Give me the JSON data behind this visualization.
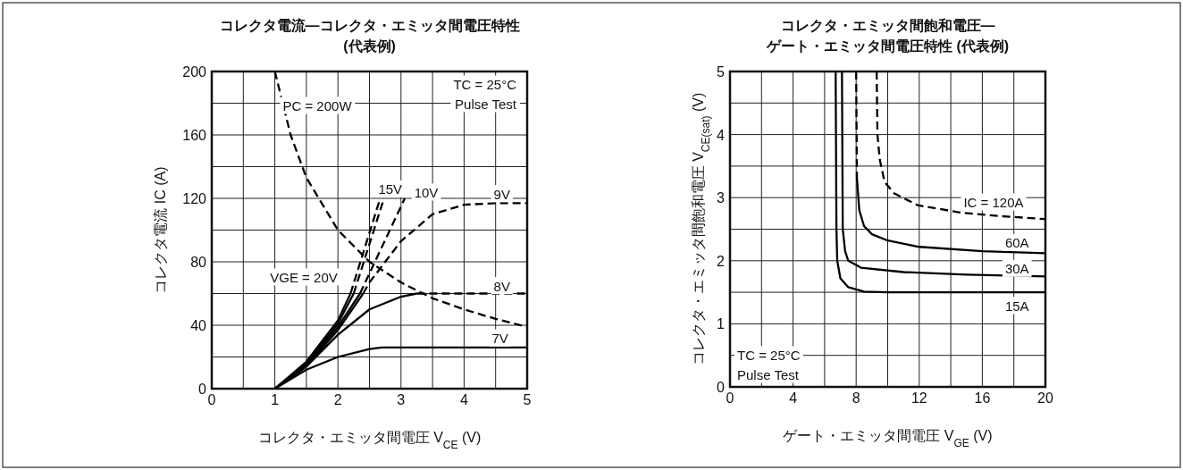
{
  "chart_data": [
    {
      "type": "line",
      "title": "コレクタ電流—コレクタ・エミッタ間電圧特性",
      "subtitle": "(代表例)",
      "xlabel": "コレクタ・エミッタ間電圧 V$_{CE}$ (V)",
      "ylabel": "コレクタ電流 IC (A)",
      "xlim": [
        0,
        5
      ],
      "ylim": [
        0,
        200
      ],
      "grid": true,
      "xticks": [
        0,
        {
          "value": 0.5,
          "label": null
        },
        1,
        {
          "value": 1.5,
          "label": null
        },
        2,
        {
          "value": 2.5,
          "label": null
        },
        3,
        {
          "value": 3.5,
          "label": null
        },
        4,
        {
          "value": 4.5,
          "label": null
        },
        5
      ],
      "yticks": [
        0,
        {
          "value": 20,
          "label": null
        },
        40,
        {
          "value": 60,
          "label": null
        },
        80,
        {
          "value": 100,
          "label": null
        },
        120,
        {
          "value": 140,
          "label": null
        },
        160,
        {
          "value": 180,
          "label": null
        },
        200
      ],
      "series": [
        {
          "color": "#000000",
          "line_style": "dashed",
          "x": [
            1,
            1.25,
            1.5,
            2,
            2.5,
            3,
            3.5,
            4,
            4.5,
            5
          ],
          "values": [
            200,
            160,
            133,
            100,
            80,
            67,
            57,
            50,
            44,
            39
          ]
        },
        {
          "color": "#000000",
          "line_style": "solid",
          "x": [
            1,
            1.5,
            2,
            2.5,
            2.7,
            3,
            4,
            5
          ],
          "values": [
            0,
            12,
            20,
            25,
            26,
            26,
            26,
            26
          ]
        },
        {
          "color": "#000000",
          "line_style": "solid",
          "x": [
            1,
            1.5,
            2,
            2.5,
            3,
            3.25
          ],
          "values": [
            0,
            14,
            34,
            50,
            58,
            60
          ]
        },
        {
          "color": "#000000",
          "line_style": "dashed",
          "x": [
            3.25,
            4,
            5
          ],
          "values": [
            60,
            60,
            60
          ]
        },
        {
          "color": "#000000",
          "line_style": "solid",
          "x": [
            1,
            1.5,
            2,
            2.4
          ],
          "values": [
            0,
            14,
            37,
            60
          ]
        },
        {
          "color": "#000000",
          "line_style": "dashed",
          "x": [
            2.4,
            2.5,
            3,
            3.5,
            4,
            4.5,
            5
          ],
          "values": [
            60,
            67,
            93,
            110,
            116,
            117,
            117
          ]
        },
        {
          "color": "#000000",
          "line_style": "solid",
          "x": [
            1,
            1.5,
            2,
            2.35
          ],
          "values": [
            0,
            15,
            39,
            60
          ]
        },
        {
          "color": "#000000",
          "line_style": "dashed",
          "x": [
            2.35,
            3.06
          ],
          "values": [
            60,
            120
          ]
        },
        {
          "color": "#000000",
          "line_style": "solid",
          "x": [
            1,
            1.5,
            2,
            2.25
          ],
          "values": [
            0,
            16,
            41,
            60
          ]
        },
        {
          "color": "#000000",
          "line_style": "dashed",
          "x": [
            2.25,
            2.73
          ],
          "values": [
            60,
            120
          ]
        },
        {
          "color": "#000000",
          "line_style": "solid",
          "x": [
            1,
            1.5,
            2,
            2.2
          ],
          "values": [
            0,
            17,
            43,
            60
          ]
        },
        {
          "color": "#000000",
          "line_style": "dashed",
          "x": [
            2.2,
            2.67
          ],
          "values": [
            60,
            120
          ]
        }
      ],
      "annotations": [
        "TC = 25°C\nPulse Test",
        "PC = 200W",
        {
          "text": "15V",
          "x": 2.83,
          "y": 126
        },
        {
          "text": "10V",
          "x": 3.4,
          "y": 124
        },
        {
          "text": "9V",
          "x": 4.6,
          "y": 123
        },
        {
          "text": "8V",
          "x": 4.6,
          "y": 65
        },
        {
          "text": "7V",
          "x": 4.57,
          "y": 32
        },
        "VGE = 20V"
      ]
    },
    {
      "type": "line",
      "title": "コレクタ・エミッタ間飽和電圧—",
      "subtitle": "ゲート・エミッタ間電圧特性 (代表例)",
      "xlabel": "ゲート・エミッタ間電圧 V$_{GE}$ (V)",
      "ylabel": "コレクタ・エミッタ間飽和電圧 V$_{CE(sat)}$ (V)",
      "xlim": [
        0,
        20
      ],
      "ylim": [
        0,
        5
      ],
      "grid": true,
      "xticks": [
        0,
        {
          "value": 2,
          "label": null
        },
        4,
        {
          "value": 6,
          "label": null
        },
        8,
        {
          "value": 10,
          "label": null
        },
        12,
        {
          "value": 14,
          "label": null
        },
        16,
        {
          "value": 18,
          "label": null
        },
        20
      ],
      "yticks": [
        0,
        {
          "value": 0.5,
          "label": null
        },
        1,
        {
          "value": 1.5,
          "label": null
        },
        2,
        {
          "value": 2.5,
          "label": null
        },
        3,
        {
          "value": 3.5,
          "label": null
        },
        4,
        {
          "value": 4.5,
          "label": null
        },
        5
      ],
      "series": [
        {
          "color": "#000000",
          "line_style": "solid",
          "x": [
            6.7,
            6.75,
            6.8,
            7.0,
            7.5,
            8.5,
            10,
            20
          ],
          "values": [
            5,
            2.5,
            2.0,
            1.72,
            1.58,
            1.51,
            1.5,
            1.5
          ]
        },
        {
          "color": "#000000",
          "line_style": "solid",
          "x": [
            7.1,
            7.15,
            7.3,
            7.5,
            8.3,
            11,
            15,
            20
          ],
          "values": [
            5,
            2.5,
            2.15,
            2.0,
            1.89,
            1.82,
            1.78,
            1.75
          ]
        },
        {
          "color": "#000000",
          "line_style": "dashed",
          "x": [
            8.0,
            8.05
          ],
          "values": [
            5,
            3.3
          ]
        },
        {
          "color": "#000000",
          "line_style": "solid",
          "x": [
            8.05,
            8.2,
            8.5,
            9,
            10,
            12,
            16,
            20
          ],
          "values": [
            3.3,
            2.8,
            2.55,
            2.42,
            2.32,
            2.22,
            2.15,
            2.12
          ]
        },
        {
          "color": "#000000",
          "line_style": "dashed",
          "x": [
            9.3,
            9.35,
            9.5,
            9.8,
            10.4,
            11.9,
            14.7,
            17,
            20
          ],
          "values": [
            5,
            4,
            3.6,
            3.25,
            3.07,
            2.88,
            2.76,
            2.71,
            2.66
          ]
        }
      ],
      "annotations": [
        "TC = 25°C\nPulse Test",
        "IC = 120A",
        {
          "text": "60A",
          "x": 18.2,
          "y": 2.29
        },
        {
          "text": "30A",
          "x": 18.2,
          "y": 1.88
        },
        {
          "text": "15A",
          "x": 18.2,
          "y": 1.29
        }
      ]
    }
  ]
}
